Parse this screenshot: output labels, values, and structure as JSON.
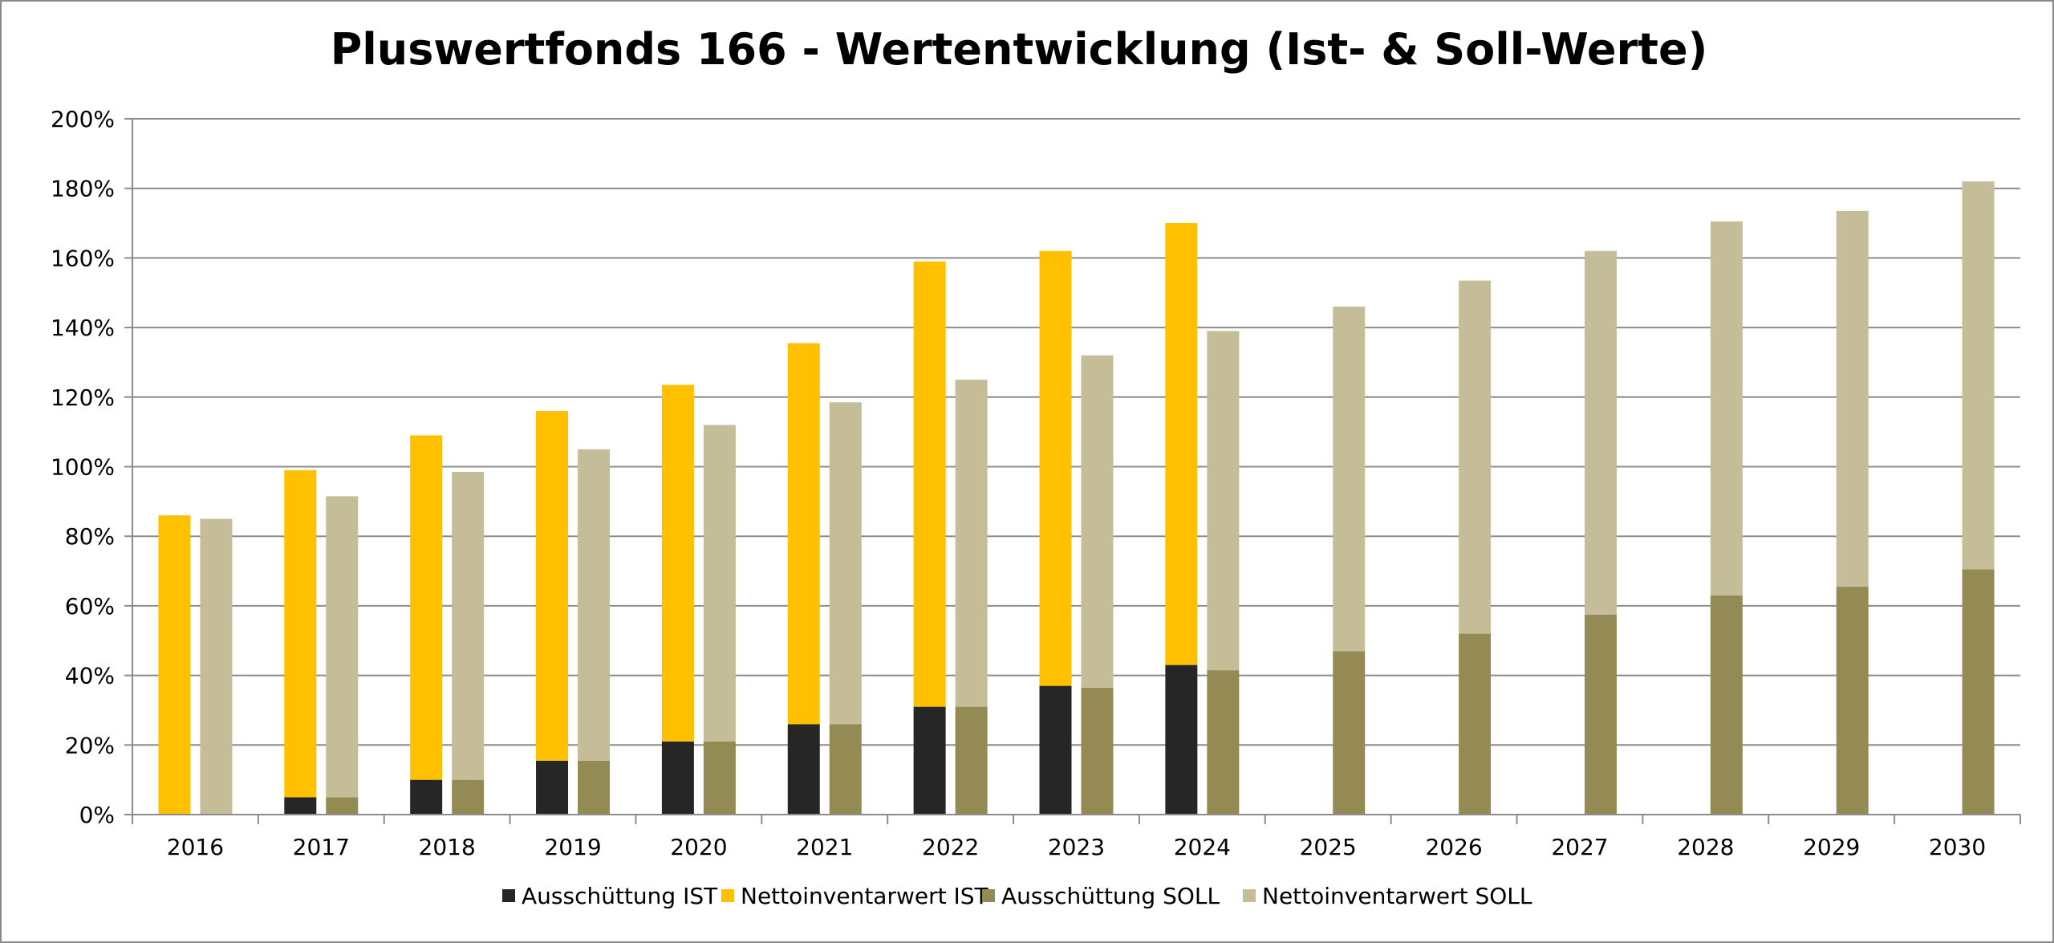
{
  "chart_data": {
    "type": "bar",
    "title": "Pluswertfonds 166 - Wertentwicklung (Ist- & Soll-Werte)",
    "xlabel": "",
    "ylabel": "",
    "ylim": [
      0,
      200
    ],
    "y_ticks": [
      "0%",
      "20%",
      "40%",
      "60%",
      "80%",
      "100%",
      "120%",
      "140%",
      "160%",
      "180%",
      "200%"
    ],
    "categories": [
      "2016",
      "2017",
      "2018",
      "2019",
      "2020",
      "2021",
      "2022",
      "2023",
      "2024",
      "2025",
      "2026",
      "2027",
      "2028",
      "2029",
      "2030"
    ],
    "grid": true,
    "legend_position": "bottom",
    "stacks": [
      {
        "stack": "IST",
        "series": [
          {
            "name": "Ausschüttung IST",
            "color": "#262626",
            "values": [
              0,
              5,
              10,
              15.5,
              21,
              26,
              31,
              37,
              43,
              null,
              null,
              null,
              null,
              null,
              null
            ]
          },
          {
            "name": "Nettoinventarwert IST",
            "color": "#ffc000",
            "values": [
              86,
              94,
              99,
              100.5,
              102.5,
              109.5,
              128,
              125,
              127,
              null,
              null,
              null,
              null,
              null,
              null
            ]
          }
        ]
      },
      {
        "stack": "SOLL",
        "series": [
          {
            "name": "Ausschüttung SOLL",
            "color": "#948a54",
            "values": [
              0,
              5,
              10,
              15.5,
              21,
              26,
              31,
              36.5,
              41.5,
              47,
              52,
              57.5,
              63,
              65.5,
              70.5
            ]
          },
          {
            "name": "Nettoinventarwert SOLL",
            "color": "#c4bd97",
            "values": [
              85,
              86.5,
              88.5,
              89.5,
              91,
              92.5,
              94,
              95.5,
              97.5,
              99,
              101.5,
              104.5,
              107.5,
              108,
              111.5
            ]
          }
        ]
      }
    ],
    "legend": [
      "Ausschüttung IST",
      "Nettoinventarwert IST",
      "Ausschüttung SOLL",
      "Nettoinventarwert SOLL"
    ]
  }
}
